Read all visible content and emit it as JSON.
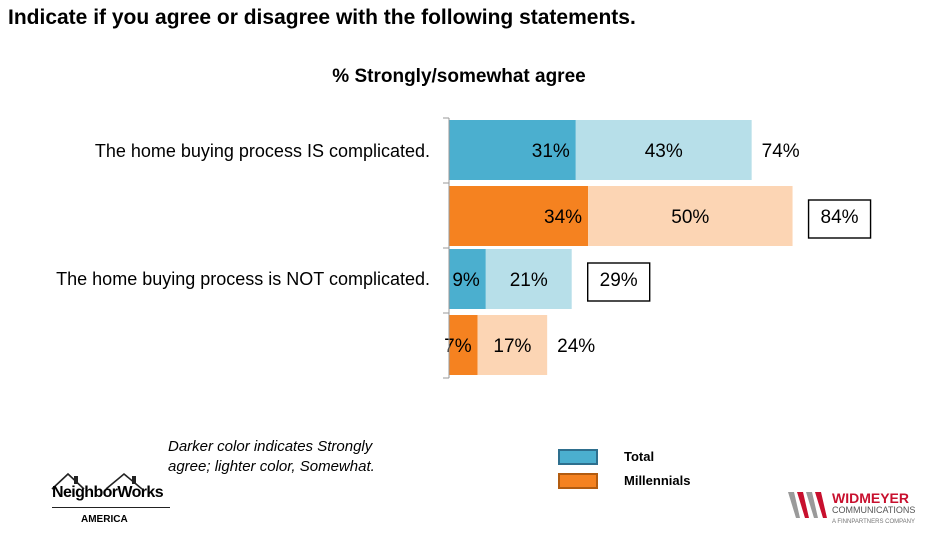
{
  "title": "Indicate if you agree or disagree with the following statements.",
  "chart_data": {
    "type": "bar",
    "subtitle": "% Strongly/somewhat agree",
    "categories": [
      "The home buying process IS complicated.",
      "The home buying process is NOT complicated."
    ],
    "series": [
      {
        "name": "Total",
        "strongly": [
          31,
          9
        ],
        "somewhat": [
          43,
          21
        ],
        "total": [
          74,
          29
        ]
      },
      {
        "name": "Millennials",
        "strongly": [
          34,
          7
        ],
        "somewhat": [
          50,
          17
        ],
        "total": [
          84,
          24
        ]
      }
    ],
    "segment_labels": {
      "strongly": [
        [
          "31%",
          "9%"
        ],
        [
          "34%",
          "7%"
        ]
      ],
      "somewhat": [
        [
          "43%",
          "21%"
        ],
        [
          "50%",
          "17%"
        ]
      ]
    },
    "total_labels": [
      [
        "74%",
        "29%"
      ],
      [
        "84%",
        "24%"
      ]
    ],
    "boxed_totals": [
      [
        false,
        true
      ],
      [
        true,
        false
      ]
    ],
    "xlim": [
      0,
      100
    ],
    "colors": {
      "total_strong": "#4bafcf",
      "total_somewhat": "#b7dfe9",
      "millennials_strong": "#f58220",
      "millennials_somewhat": "#fcd5b4"
    }
  },
  "note": "Darker color indicates Strongly agree; lighter color, Somewhat.",
  "legend": [
    {
      "label": "Total",
      "color": "#4bafcf",
      "border": "#2e6f8e"
    },
    {
      "label": "Millennials",
      "color": "#f58220",
      "border": "#b35c10"
    }
  ],
  "logos": {
    "left": {
      "name": "NeighborWorks",
      "sub": "AMERICA"
    },
    "right": {
      "name": "WIDMEYER",
      "sub": "COMMUNICATIONS",
      "tag": "A FINNPARTNERS COMPANY"
    }
  }
}
